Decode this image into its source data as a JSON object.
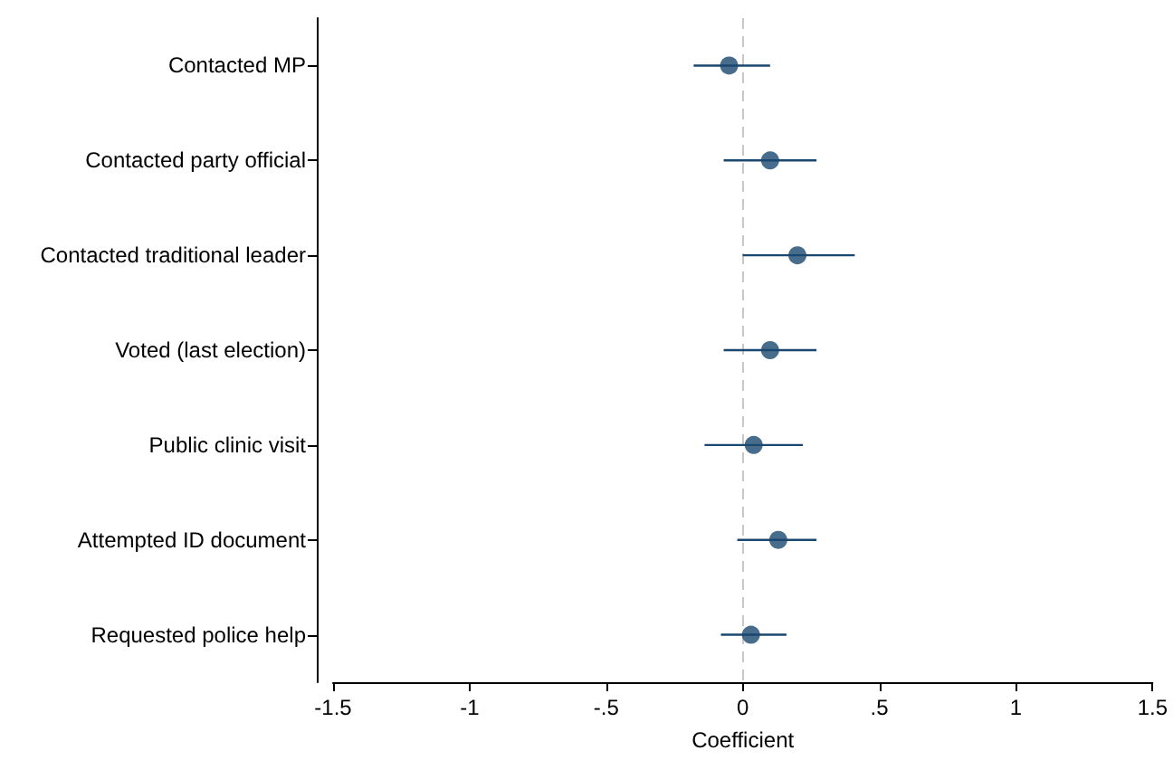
{
  "chart_data": {
    "type": "scatter",
    "xlabel": "Coefficient",
    "categories": [
      "Contacted MP",
      "Contacted party official",
      "Contacted traditional leader",
      "Voted (last election)",
      "Public clinic visit",
      "Attempted ID document",
      "Requested police help"
    ],
    "orientation": "horizontal",
    "values": [
      -0.05,
      0.1,
      0.2,
      0.1,
      0.04,
      0.13,
      0.03
    ],
    "errors": [
      [
        -0.18,
        0.1
      ],
      [
        -0.07,
        0.27
      ],
      [
        0.0,
        0.41
      ],
      [
        -0.07,
        0.27
      ],
      [
        -0.14,
        0.22
      ],
      [
        -0.02,
        0.27
      ],
      [
        -0.08,
        0.16
      ]
    ],
    "color": "#1a476f",
    "marker": "circle",
    "xlim": [
      -1.5,
      1.5
    ],
    "xticks": [
      -1.5,
      -1,
      {
        "value": -0.5,
        "label": "-.5"
      },
      0,
      {
        "value": 0.5,
        "label": ".5"
      },
      1,
      1.5
    ],
    "ref_lines": [
      {
        "axis": "x",
        "value": 0,
        "label": null,
        "color": "#c8c8c8",
        "line_style": "dashed"
      }
    ],
    "grid": false
  }
}
